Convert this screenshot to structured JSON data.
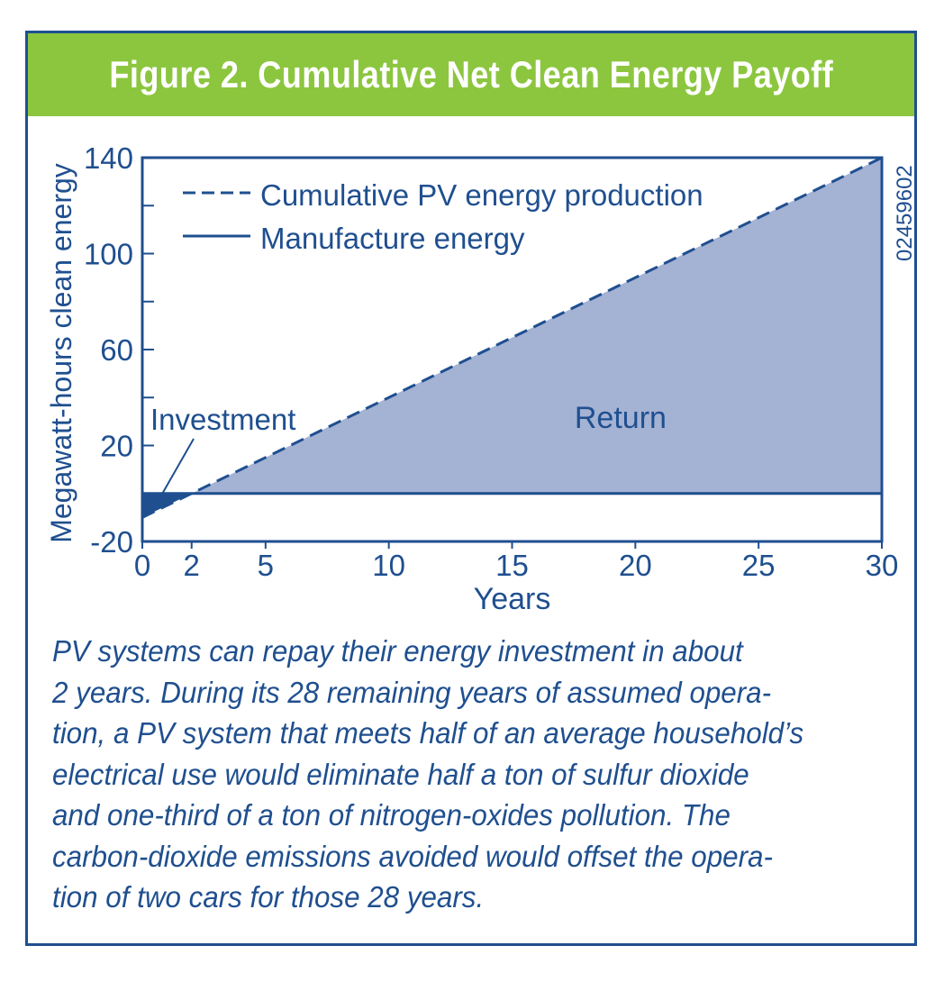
{
  "title": "Figure 2. Cumulative Net Clean Energy Payoff",
  "colors": {
    "banner": "#8cc63f",
    "ink": "#1f4f8f",
    "return_fill": "#a4b2d4",
    "investment_fill": "#1f4f8f"
  },
  "chart_data": {
    "type": "area",
    "xlabel": "Years",
    "ylabel": "Megawatt-hours clean energy",
    "xlim": [
      0,
      30
    ],
    "ylim": [
      -20,
      140
    ],
    "x_ticks": [
      0,
      2,
      5,
      10,
      15,
      20,
      25,
      30
    ],
    "y_ticks": [
      -20,
      20,
      60,
      100,
      140
    ],
    "grid": false,
    "legend_position": "top-left",
    "series": [
      {
        "name": "Cumulative PV energy production",
        "style": "dashed",
        "x": [
          0,
          30
        ],
        "y": [
          -10,
          140
        ]
      },
      {
        "name": "Manufacture energy",
        "style": "solid",
        "x": [
          0,
          30
        ],
        "y": [
          0,
          0
        ]
      }
    ],
    "regions": [
      {
        "label": "Investment",
        "x": [
          0,
          2
        ]
      },
      {
        "label": "Return",
        "x": [
          2,
          30
        ]
      }
    ],
    "side_label": "02459602"
  },
  "caption_lines": [
    "PV systems can repay their energy investment in about",
    "2 years. During its 28 remaining years of assumed opera-",
    "tion, a PV system that meets half of an average household’s",
    "electrical use would eliminate half a ton of sulfur dioxide",
    "and one-third of a ton of nitrogen-oxides pollution. The",
    "carbon-dioxide emissions avoided would offset the opera-",
    "tion of two cars for those 28 years."
  ]
}
